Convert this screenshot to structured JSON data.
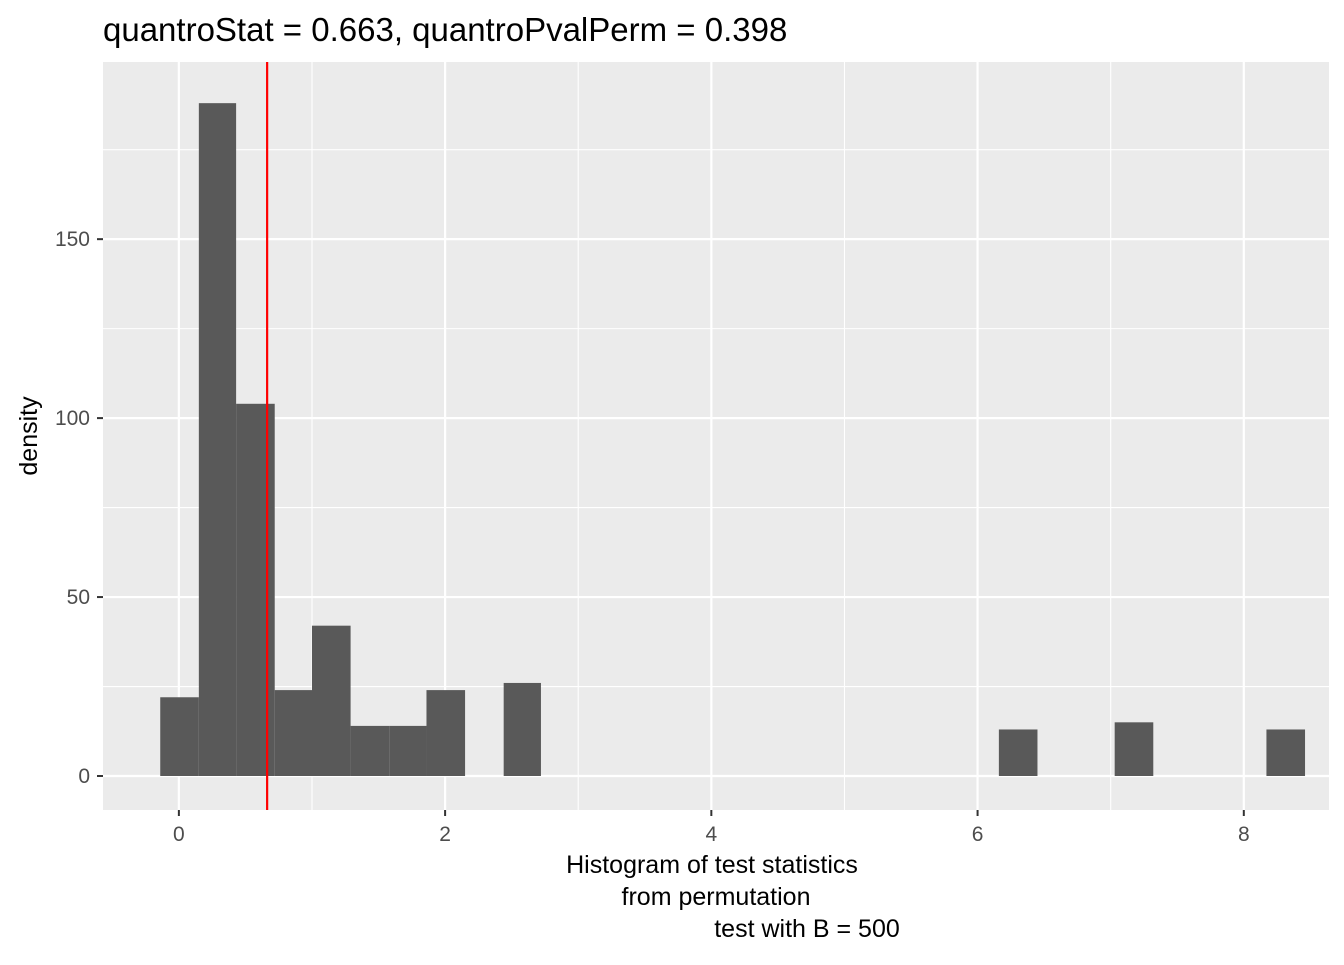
{
  "chart_data": {
    "type": "bar",
    "subtype": "histogram",
    "title": "quantroStat = 0.663, quantroPvalPerm = 0.398",
    "xlabel_lines": [
      "Histogram of test statistics",
      "from permutation",
      "test with B = 500"
    ],
    "ylabel": "density",
    "xlim": [
      -0.57,
      8.64
    ],
    "ylim": [
      -9.5,
      199.5
    ],
    "x_ticks": [
      0,
      2,
      4,
      6,
      8
    ],
    "x_tick_labels": [
      "0",
      "2",
      "4",
      "6",
      "8"
    ],
    "y_ticks": [
      0,
      50,
      100,
      150
    ],
    "y_tick_labels": [
      "0",
      "50",
      "100",
      "150"
    ],
    "x_minor_gridlines": [
      1,
      3,
      5,
      7
    ],
    "y_minor_gridlines": [
      25,
      75,
      125,
      175
    ],
    "grid": true,
    "bins": [
      {
        "x0": -0.14,
        "x1": 0.15,
        "density": 22
      },
      {
        "x0": 0.15,
        "x1": 0.43,
        "density": 188
      },
      {
        "x0": 0.43,
        "x1": 0.72,
        "density": 104
      },
      {
        "x0": 0.72,
        "x1": 1.0,
        "density": 24
      },
      {
        "x0": 1.0,
        "x1": 1.29,
        "density": 42
      },
      {
        "x0": 1.29,
        "x1": 1.58,
        "density": 14
      },
      {
        "x0": 1.58,
        "x1": 1.86,
        "density": 14
      },
      {
        "x0": 1.86,
        "x1": 2.15,
        "density": 24
      },
      {
        "x0": 2.44,
        "x1": 2.72,
        "density": 26
      },
      {
        "x0": 6.16,
        "x1": 6.45,
        "density": 13
      },
      {
        "x0": 7.03,
        "x1": 7.32,
        "density": 15
      },
      {
        "x0": 8.17,
        "x1": 8.46,
        "density": 13
      }
    ],
    "reference_line": {
      "x": 0.663,
      "color": "#ff0000"
    },
    "colors": {
      "panel_background": "#ebebeb",
      "gridline": "#ffffff",
      "bar_fill": "#595959",
      "tick_color": "#333333"
    }
  }
}
